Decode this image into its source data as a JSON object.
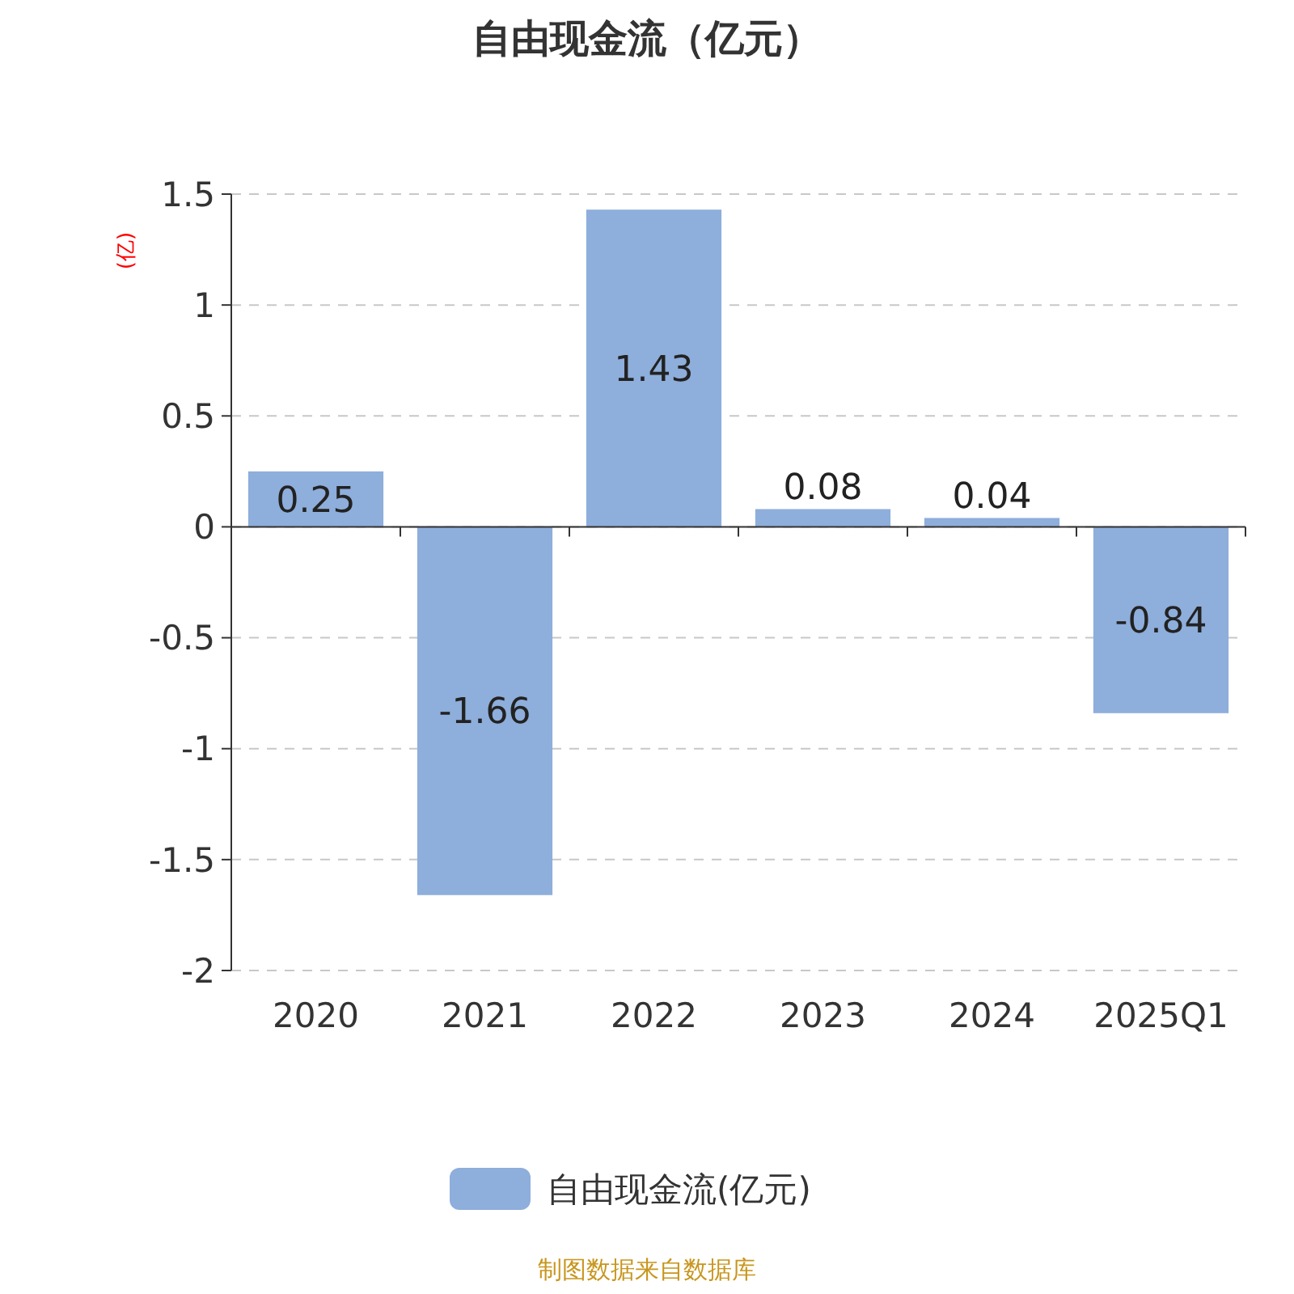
{
  "chart_data": {
    "type": "bar",
    "title": "自由现金流（亿元）",
    "ylabel": "(亿)",
    "categories": [
      "2020",
      "2021",
      "2022",
      "2023",
      "2024",
      "2025Q1"
    ],
    "series": [
      {
        "name": "自由现金流(亿元)",
        "color": "#8eaedb",
        "values": [
          0.25,
          -1.66,
          1.43,
          0.08,
          0.04,
          -0.84
        ]
      }
    ],
    "ylim": [
      -2,
      1.5
    ],
    "yticks": [
      -2,
      -1.5,
      -1,
      -0.5,
      0,
      0.5,
      1,
      1.5
    ],
    "grid": "y",
    "legend": "bottom",
    "data_labels": true,
    "annotations": [
      "制图数据来自数据库"
    ]
  }
}
